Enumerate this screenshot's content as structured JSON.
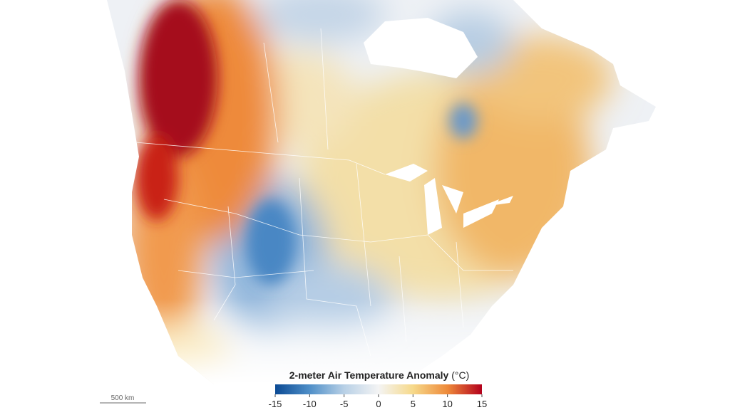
{
  "map": {
    "legend": {
      "title": "2-meter Air Temperature Anomaly",
      "unit": "(°C)",
      "range": [
        -15,
        15
      ],
      "ticks": [
        -15,
        -10,
        -5,
        0,
        5,
        10,
        15
      ],
      "colors": [
        "#0b4a94",
        "#4f8fc8",
        "#b8d0e6",
        "#f4f4f4",
        "#f6d98a",
        "#ee8a3a",
        "#b3001c"
      ]
    },
    "scale_bar": {
      "label": "500 km"
    }
  }
}
